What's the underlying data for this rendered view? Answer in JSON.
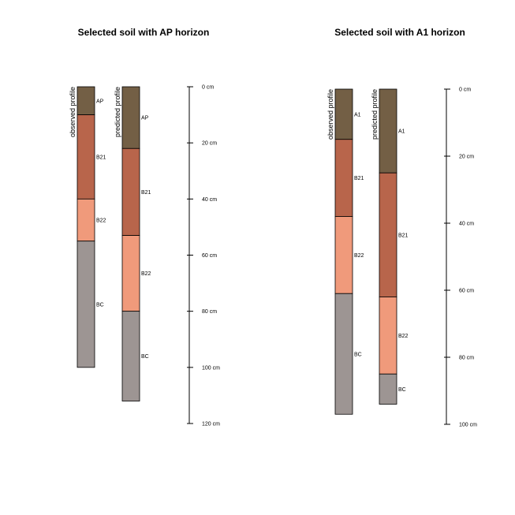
{
  "chart_data": [
    {
      "type": "soil-profile",
      "title": "Selected soil with AP horizon",
      "depth_unit": "cm",
      "axis_ticks": [
        "0 cm",
        "20 cm",
        "40 cm",
        "60 cm",
        "80 cm",
        "100 cm",
        "120 cm"
      ],
      "ylim": [
        0,
        120
      ],
      "profiles": [
        {
          "label": "observed profile",
          "horizons": [
            {
              "name": "AP",
              "top": 0,
              "bottom": 10,
              "color": "#735F45"
            },
            {
              "name": "B21",
              "top": 10,
              "bottom": 40,
              "color": "#B8654B"
            },
            {
              "name": "B22",
              "top": 40,
              "bottom": 55,
              "color": "#F09A7B"
            },
            {
              "name": "BC",
              "top": 55,
              "bottom": 100,
              "color": "#9D9593"
            }
          ]
        },
        {
          "label": "predicted profile",
          "horizons": [
            {
              "name": "AP",
              "top": 0,
              "bottom": 22,
              "color": "#735F45"
            },
            {
              "name": "B21",
              "top": 22,
              "bottom": 53,
              "color": "#B8654B"
            },
            {
              "name": "B22",
              "top": 53,
              "bottom": 80,
              "color": "#F09A7B"
            },
            {
              "name": "BC",
              "top": 80,
              "bottom": 112,
              "color": "#9D9593"
            }
          ]
        }
      ]
    },
    {
      "type": "soil-profile",
      "title": "Selected soil with A1 horizon",
      "depth_unit": "cm",
      "axis_ticks": [
        "0 cm",
        "20 cm",
        "40 cm",
        "60 cm",
        "80 cm",
        "100 cm"
      ],
      "ylim": [
        0,
        100
      ],
      "profiles": [
        {
          "label": "observed profile",
          "horizons": [
            {
              "name": "A1",
              "top": 0,
              "bottom": 15,
              "color": "#735F45"
            },
            {
              "name": "B21",
              "top": 15,
              "bottom": 38,
              "color": "#B8654B"
            },
            {
              "name": "B22",
              "top": 38,
              "bottom": 61,
              "color": "#F09A7B"
            },
            {
              "name": "BC",
              "top": 61,
              "bottom": 97,
              "color": "#9D9593"
            }
          ]
        },
        {
          "label": "predicted profile",
          "horizons": [
            {
              "name": "A1",
              "top": 0,
              "bottom": 25,
              "color": "#735F45"
            },
            {
              "name": "B21",
              "top": 25,
              "bottom": 62,
              "color": "#B8654B"
            },
            {
              "name": "B22",
              "top": 62,
              "bottom": 85,
              "color": "#F09A7B"
            },
            {
              "name": "BC",
              "top": 85,
              "bottom": 94,
              "color": "#9D9593"
            }
          ]
        }
      ]
    }
  ]
}
